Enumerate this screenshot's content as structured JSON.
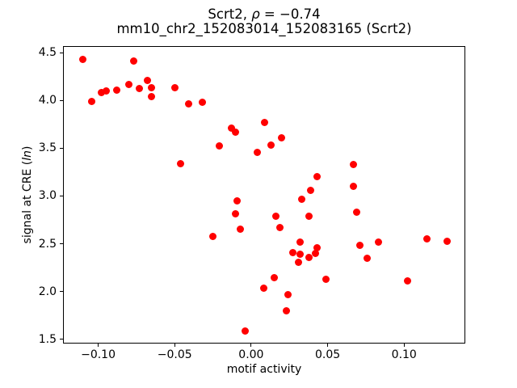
{
  "chart_data": {
    "type": "scatter",
    "title_line1": {
      "prefix": "Scrt2, ",
      "rho": "ρ",
      "suffix": " = −0.74"
    },
    "title_line2": "mm10_chr2_152083014_152083165 (Scrt2)",
    "xlabel": "motif activity",
    "ylabel": {
      "prefix": "signal at CRE (",
      "italic": "ln",
      "suffix": ")"
    },
    "marker_color": "#ff0000",
    "axis_color": "#000000",
    "grid": false,
    "legend": "none",
    "xlim": [
      -0.123,
      0.14
    ],
    "ylim": [
      1.457,
      4.568
    ],
    "x_ticks": [
      {
        "value": -0.1,
        "label": "−0.10"
      },
      {
        "value": -0.05,
        "label": "−0.05"
      },
      {
        "value": 0.0,
        "label": "0.00"
      },
      {
        "value": 0.05,
        "label": "0.05"
      },
      {
        "value": 0.1,
        "label": "0.10"
      }
    ],
    "y_ticks": [
      {
        "value": 1.5,
        "label": "1.5"
      },
      {
        "value": 2.0,
        "label": "2.0"
      },
      {
        "value": 2.5,
        "label": "2.5"
      },
      {
        "value": 3.0,
        "label": "3.0"
      },
      {
        "value": 3.5,
        "label": "3.5"
      },
      {
        "value": 4.0,
        "label": "4.0"
      },
      {
        "value": 4.5,
        "label": "4.5"
      }
    ],
    "points": [
      [
        -0.11,
        4.43
      ],
      [
        -0.077,
        4.41
      ],
      [
        -0.104,
        3.99
      ],
      [
        -0.098,
        4.08
      ],
      [
        -0.095,
        4.1
      ],
      [
        -0.088,
        4.11
      ],
      [
        -0.08,
        4.17
      ],
      [
        -0.073,
        4.12
      ],
      [
        -0.068,
        4.21
      ],
      [
        -0.065,
        4.13
      ],
      [
        -0.065,
        4.04
      ],
      [
        -0.05,
        4.13
      ],
      [
        -0.041,
        3.96
      ],
      [
        -0.032,
        3.98
      ],
      [
        -0.013,
        3.71
      ],
      [
        -0.01,
        3.67
      ],
      [
        -0.021,
        3.52
      ],
      [
        0.004,
        3.46
      ],
      [
        -0.046,
        3.34
      ],
      [
        0.009,
        3.77
      ],
      [
        0.02,
        3.61
      ],
      [
        0.013,
        3.53
      ],
      [
        0.067,
        3.33
      ],
      [
        0.043,
        3.2
      ],
      [
        0.067,
        3.1
      ],
      [
        0.039,
        3.06
      ],
      [
        0.069,
        2.83
      ],
      [
        -0.009,
        2.95
      ],
      [
        -0.01,
        2.81
      ],
      [
        -0.007,
        2.65
      ],
      [
        -0.025,
        2.58
      ],
      [
        0.033,
        2.97
      ],
      [
        0.016,
        2.79
      ],
      [
        0.038,
        2.79
      ],
      [
        0.019,
        2.67
      ],
      [
        0.032,
        2.52
      ],
      [
        0.027,
        2.41
      ],
      [
        0.032,
        2.39
      ],
      [
        0.038,
        2.36
      ],
      [
        0.042,
        2.4
      ],
      [
        0.043,
        2.46
      ],
      [
        0.031,
        2.31
      ],
      [
        0.071,
        2.48
      ],
      [
        0.083,
        2.52
      ],
      [
        0.076,
        2.35
      ],
      [
        0.115,
        2.55
      ],
      [
        0.128,
        2.53
      ],
      [
        0.015,
        2.15
      ],
      [
        0.008,
        2.04
      ],
      [
        0.024,
        1.97
      ],
      [
        0.023,
        1.8
      ],
      [
        0.049,
        2.13
      ],
      [
        0.102,
        2.11
      ],
      [
        -0.004,
        1.59
      ]
    ]
  }
}
